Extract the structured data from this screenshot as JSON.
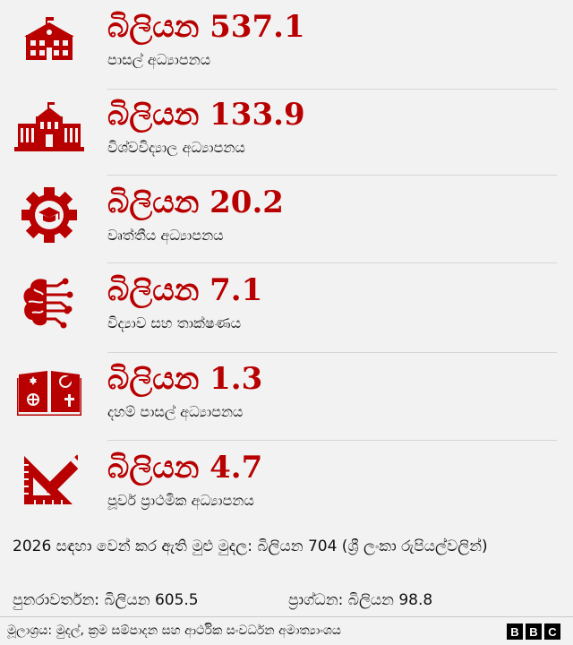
{
  "theme": {
    "accent": "#b80000",
    "background": "#f2f2f2"
  },
  "items": [
    {
      "icon": "school-building-icon",
      "amount": "බිලියන 537.1",
      "label": "පාසල් අධ්‍යාපනය"
    },
    {
      "icon": "university-building-icon",
      "amount": "බිලියන 133.9",
      "label": "විශ්වවිද්‍යාල අධ්‍යාපනය"
    },
    {
      "icon": "gear-graduation-cap-icon",
      "amount": "බිලියන 20.2",
      "label": "වෘත්තීය අධ්‍යාපනය"
    },
    {
      "icon": "brain-circuit-icon",
      "amount": "බිලියන 7.1",
      "label": "විද්‍යාව සහ තාක්ෂණය"
    },
    {
      "icon": "religious-book-icon",
      "amount": "බිලියන 1.3",
      "label": "දහම් පාසල් අධ්‍යාපනය"
    },
    {
      "icon": "ruler-pencil-icon",
      "amount": "බිලියන 4.7",
      "label": "පූර්ව ප්‍රාථමික අධ්‍යාපනය"
    }
  ],
  "total": "2026 සඳහා වෙන් කර ඇති මුළු මුදල: බිලියන 704 (ශ්‍රී ලංකා රුපියල්වලින්)",
  "recurrent": "පුනරාවර්තන: බිලියන 605.5",
  "capital": "ප්‍රාග්ධන: බිලියන 98.8",
  "source": "මූලාශ්‍රය: මුදල්, ක්‍රම සම්පාදන සහ ආර්ථික සංවර්ධන අමාත්‍යාංශය",
  "logo": [
    "B",
    "B",
    "C"
  ]
}
